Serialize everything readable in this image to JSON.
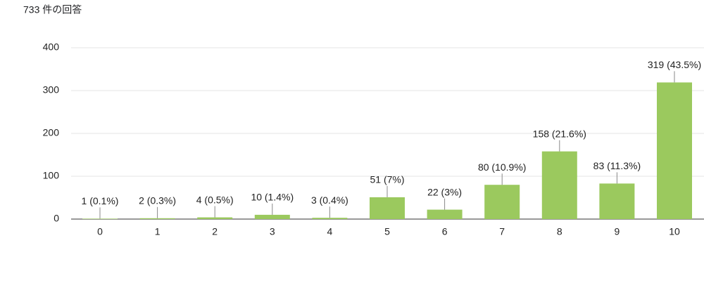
{
  "chart_data": {
    "type": "bar",
    "title": "733 件の回答",
    "categories": [
      "0",
      "1",
      "2",
      "3",
      "4",
      "5",
      "6",
      "7",
      "8",
      "9",
      "10"
    ],
    "values": [
      1,
      2,
      4,
      10,
      3,
      51,
      22,
      80,
      158,
      83,
      319
    ],
    "value_labels": [
      "1 (0.1%)",
      "2 (0.3%)",
      "4 (0.5%)",
      "10 (1.4%)",
      "3 (0.4%)",
      "51 (7%)",
      "22 (3%)",
      "80 (10.9%)",
      "158 (21.6%)",
      "83 (11.3%)",
      "319 (43.5%)"
    ],
    "color": "#9bc95e",
    "ylim": [
      0,
      400
    ],
    "yticks": [
      0,
      100,
      200,
      300,
      400
    ],
    "grid": true
  }
}
